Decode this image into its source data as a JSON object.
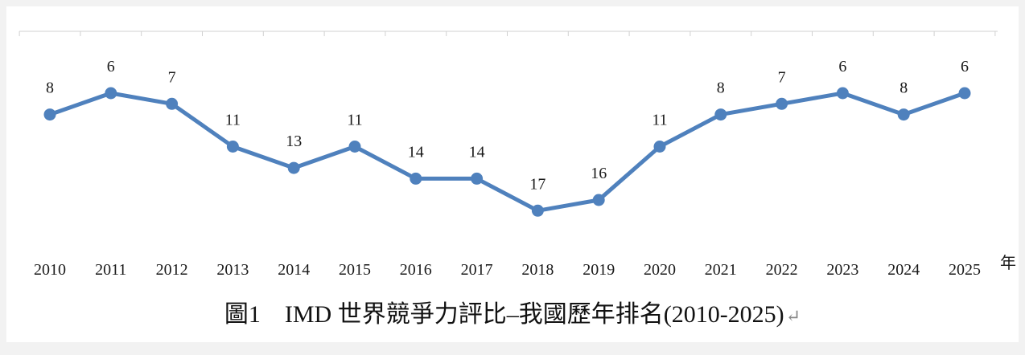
{
  "caption": {
    "text": "圖1　IMD 世界競爭力評比–我國歷年排名(2010-2025)",
    "return_mark": "↵"
  },
  "colors": {
    "line": "#4f81bd",
    "axis": "#d0d0d0",
    "text": "#1a1a1a"
  },
  "chart_data": {
    "type": "line",
    "title": "",
    "xlabel": "年",
    "ylabel": "",
    "y_inverted": true,
    "ylim": [
      5,
      17
    ],
    "categories": [
      "2010",
      "2011",
      "2012",
      "2013",
      "2014",
      "2015",
      "2016",
      "2017",
      "2018",
      "2019",
      "2020",
      "2021",
      "2022",
      "2023",
      "2024",
      "2025"
    ],
    "series": [
      {
        "values": [
          8,
          6,
          7,
          11,
          13,
          11,
          14,
          14,
          17,
          16,
          11,
          8,
          7,
          6,
          8,
          6
        ]
      }
    ],
    "data_labels": true,
    "grid": false,
    "legend": "none"
  }
}
